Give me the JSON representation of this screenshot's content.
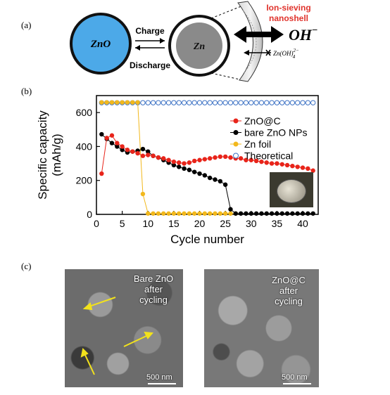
{
  "panels": {
    "a": "(a)",
    "b": "(b)",
    "c": "(c)"
  },
  "schematic": {
    "zno_label": "ZnO",
    "zn_label": "Zn",
    "charge": "Charge",
    "discharge": "Discharge",
    "shell_title_line1": "Ion-sieving",
    "shell_title_line2": "nanoshell",
    "oh_label": "OH",
    "oh_sup": "−",
    "zincate_label": "Zn(OH)",
    "zincate_sub": "4",
    "zincate_sup": "2−",
    "colors": {
      "zno_fill": "#4ca9e8",
      "zn_fill": "#8a8a8a",
      "shell_title": "#e0332c"
    }
  },
  "chart_data": {
    "type": "scatter",
    "xlabel": "Cycle number",
    "ylabel_line1": "Specific capacity",
    "ylabel_line2": "(mAh/g)",
    "xlim": [
      0,
      43
    ],
    "ylim": [
      0,
      700
    ],
    "xticks": [
      0,
      5,
      10,
      15,
      20,
      25,
      30,
      35,
      40
    ],
    "yticks": [
      0,
      200,
      400,
      600
    ],
    "legend_position": "top-right",
    "series": [
      {
        "name": "ZnO@C",
        "color": "#e8241a",
        "marker": "filled",
        "x": [
          1,
          2,
          3,
          4,
          5,
          6,
          7,
          8,
          9,
          10,
          11,
          12,
          13,
          14,
          15,
          16,
          17,
          18,
          19,
          20,
          21,
          22,
          23,
          24,
          25,
          26,
          27,
          28,
          29,
          30,
          31,
          32,
          33,
          34,
          35,
          36,
          37,
          38,
          39,
          40,
          41,
          42
        ],
        "y": [
          240,
          450,
          465,
          420,
          400,
          380,
          370,
          360,
          345,
          350,
          345,
          335,
          330,
          320,
          310,
          305,
          300,
          305,
          315,
          320,
          325,
          330,
          335,
          340,
          340,
          335,
          330,
          330,
          320,
          320,
          315,
          310,
          305,
          300,
          300,
          295,
          290,
          285,
          280,
          275,
          270,
          258
        ]
      },
      {
        "name": "bare ZnO NPs",
        "color": "#000000",
        "marker": "filled",
        "x": [
          1,
          2,
          3,
          4,
          5,
          6,
          7,
          8,
          9,
          10,
          11,
          12,
          13,
          14,
          15,
          16,
          17,
          18,
          19,
          20,
          21,
          22,
          23,
          24,
          25,
          26,
          27,
          28,
          29,
          30,
          31,
          32,
          33,
          34,
          35,
          36,
          37,
          38,
          39,
          40,
          41,
          42
        ],
        "y": [
          472,
          445,
          420,
          400,
          380,
          365,
          370,
          375,
          385,
          370,
          345,
          335,
          320,
          305,
          290,
          280,
          270,
          262,
          250,
          240,
          230,
          215,
          205,
          195,
          175,
          30,
          5,
          5,
          5,
          5,
          5,
          5,
          5,
          5,
          5,
          5,
          5,
          5,
          5,
          5,
          5,
          5
        ]
      },
      {
        "name": "Zn foil",
        "color": "#f2b81c",
        "marker": "filled",
        "x": [
          1,
          2,
          3,
          4,
          5,
          6,
          7,
          8,
          9,
          10,
          11,
          12,
          13,
          14,
          15,
          16,
          17,
          18,
          19,
          20,
          21,
          22,
          23,
          24,
          25,
          26,
          27
        ],
        "y": [
          660,
          660,
          660,
          660,
          660,
          660,
          660,
          660,
          120,
          5,
          5,
          5,
          5,
          5,
          5,
          5,
          5,
          5,
          5,
          5,
          5,
          5,
          5,
          5,
          5,
          5,
          5
        ]
      },
      {
        "name": "Theoretical",
        "color": "#3d72c4",
        "marker": "open",
        "x": [
          1,
          2,
          3,
          4,
          5,
          6,
          7,
          8,
          9,
          10,
          11,
          12,
          13,
          14,
          15,
          16,
          17,
          18,
          19,
          20,
          21,
          22,
          23,
          24,
          25,
          26,
          27,
          28,
          29,
          30,
          31,
          32,
          33,
          34,
          35,
          36,
          37,
          38,
          39,
          40,
          41,
          42
        ],
        "y": [
          658,
          658,
          658,
          658,
          658,
          658,
          658,
          658,
          658,
          658,
          658,
          658,
          658,
          658,
          658,
          658,
          658,
          658,
          658,
          658,
          658,
          658,
          658,
          658,
          658,
          658,
          658,
          658,
          658,
          658,
          658,
          658,
          658,
          658,
          658,
          658,
          658,
          658,
          658,
          658,
          658,
          658
        ]
      }
    ]
  },
  "sem": {
    "left_line1": "Bare ZnO",
    "left_line2": "after",
    "left_line3": "cycling",
    "right_line1": "ZnO@C",
    "right_line2": "after",
    "right_line3": "cycling",
    "scalebar": "500 nm",
    "arrow_color": "#f2e21c"
  }
}
